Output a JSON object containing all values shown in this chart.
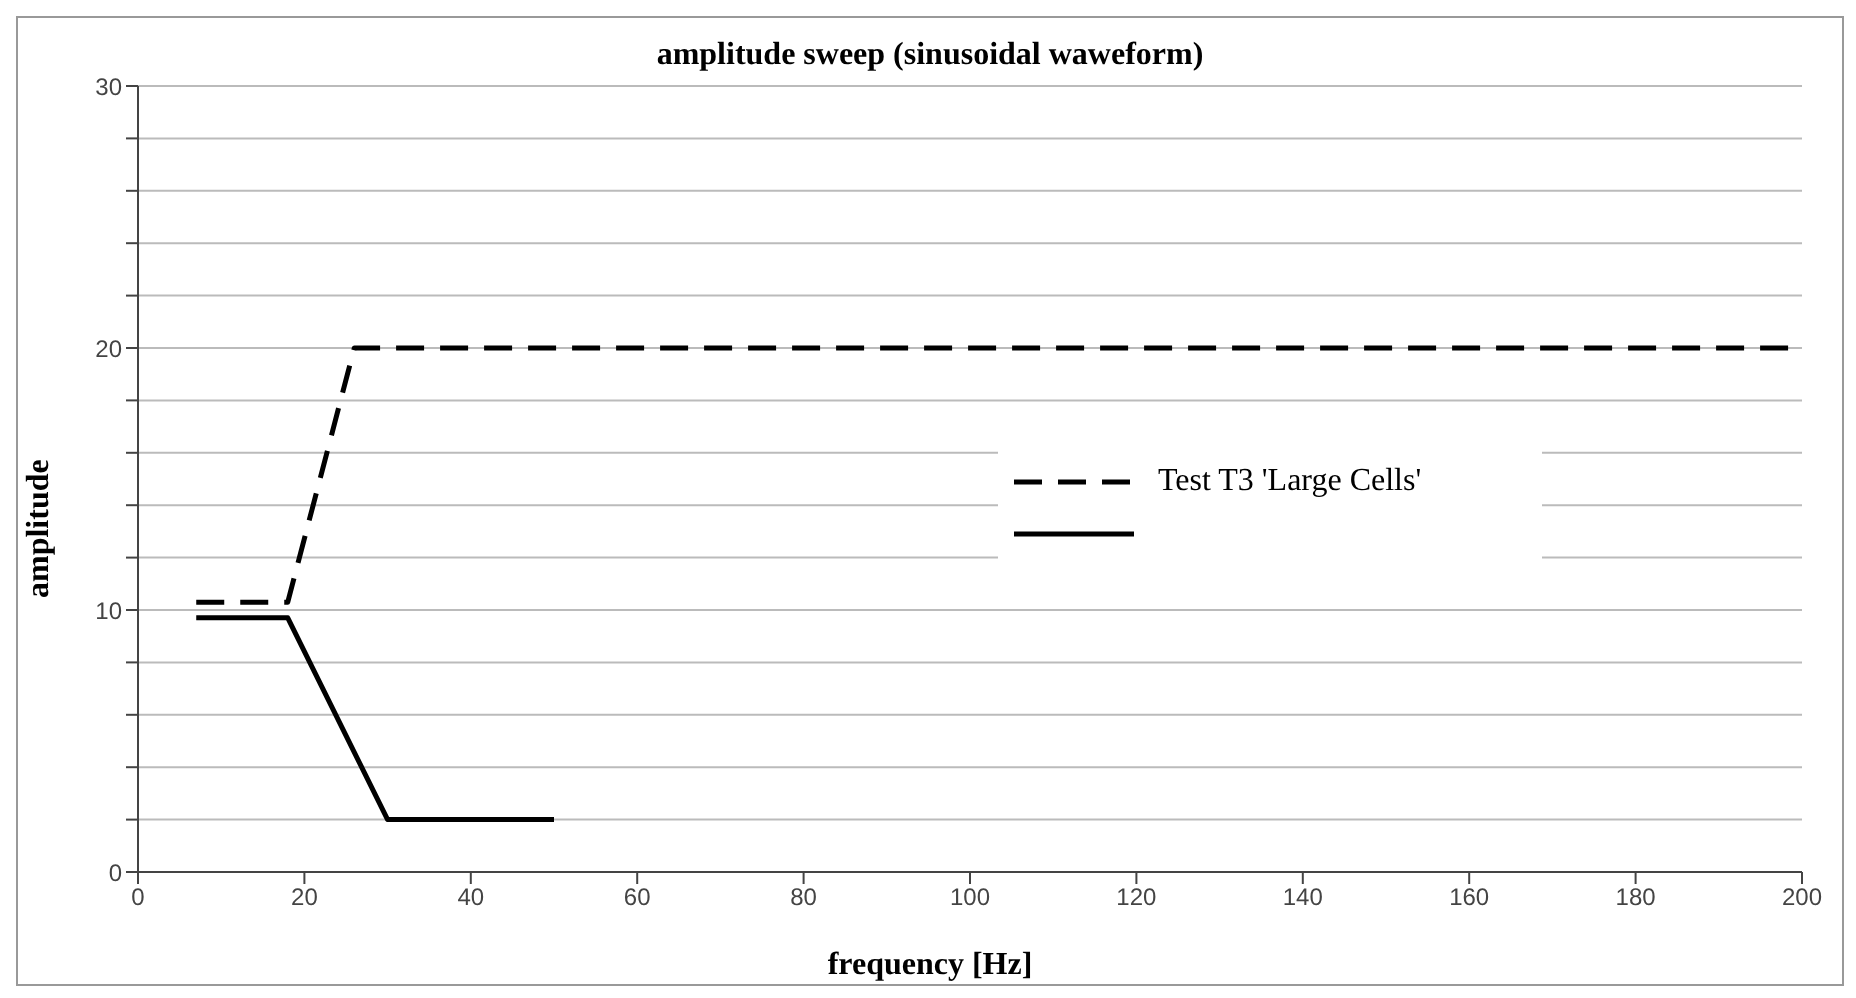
{
  "chart_data": {
    "type": "line",
    "title": "amplitude sweep (sinusoidal waweform)",
    "xlabel": "frequency [Hz]",
    "ylabel": "amplitude",
    "series": [
      {
        "name": "Test T3 'Large Cells'",
        "color": "#000000",
        "line_style": "dashed",
        "x": [
          7,
          18,
          26,
          200
        ],
        "values": [
          10.3,
          10.3,
          20,
          20
        ]
      },
      {
        "color": "#000000",
        "line_style": "solid",
        "x": [
          7,
          18,
          30,
          50
        ],
        "values": [
          9.7,
          9.7,
          2,
          2
        ]
      }
    ],
    "xlim": [
      0,
      200
    ],
    "xticks": [
      0,
      20,
      40,
      60,
      80,
      100,
      120,
      140,
      160,
      180,
      200
    ],
    "ylim": [
      0,
      30
    ],
    "yticks": [
      0,
      {
        "value": 2,
        "label": null
      },
      {
        "value": 4,
        "label": null
      },
      {
        "value": 6,
        "label": null
      },
      {
        "value": 8,
        "label": null
      },
      10,
      {
        "value": 12,
        "label": null
      },
      {
        "value": 14,
        "label": null
      },
      {
        "value": 16,
        "label": null
      },
      {
        "value": 18,
        "label": null
      },
      20,
      {
        "value": 22,
        "label": null
      },
      {
        "value": 24,
        "label": null
      },
      {
        "value": 26,
        "label": null
      },
      {
        "value": 28,
        "label": null
      },
      30
    ],
    "grid": "y",
    "legend": "right",
    "marker": "none"
  }
}
